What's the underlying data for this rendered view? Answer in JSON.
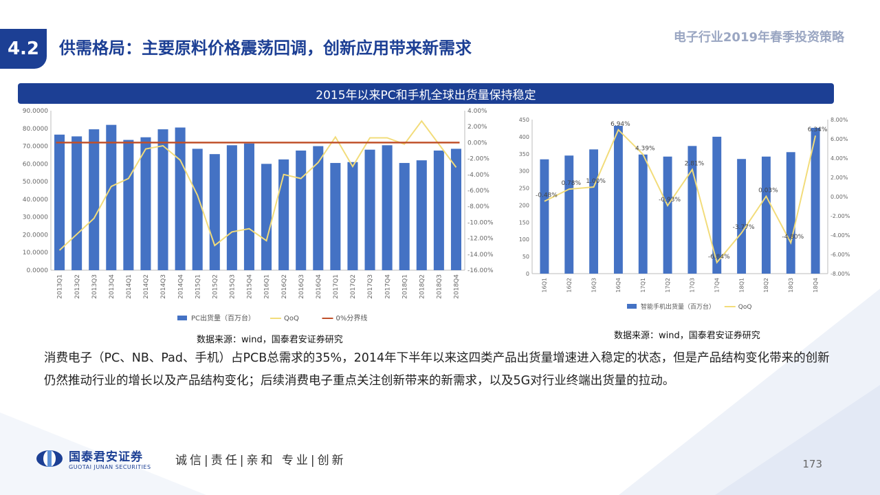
{
  "header": {
    "section_number": "4.2",
    "title": "供需格局：主要原料价格震荡回调，创新应用带来新需求",
    "brand": "电子行业2019年春季投资策略"
  },
  "banner": {
    "text": "2015年以来PC和手机全球出货量保持稳定"
  },
  "chart_data": [
    {
      "type": "bar",
      "categories": [
        "2013Q1",
        "2013Q2",
        "2013Q3",
        "2013Q4",
        "2014Q1",
        "2014Q2",
        "2014Q3",
        "2014Q4",
        "2015Q1",
        "2015Q2",
        "2015Q3",
        "2015Q4",
        "2016Q1",
        "2016Q2",
        "2016Q3",
        "2016Q4",
        "2017Q1",
        "2017Q2",
        "2017Q3",
        "2017Q4",
        "2018Q1",
        "2018Q2",
        "2018Q3",
        "2018Q4"
      ],
      "series": [
        {
          "name": "PC出货量（百万台）",
          "type": "bar",
          "axis": "left",
          "values": [
            76.5,
            75.5,
            79.5,
            82.0,
            73.5,
            75.0,
            79.5,
            80.5,
            68.5,
            65.5,
            70.5,
            71.5,
            60.0,
            62.5,
            67.5,
            70.0,
            60.5,
            61.0,
            68.0,
            70.5,
            60.5,
            62.0,
            67.5,
            68.5
          ]
        },
        {
          "name": "QoQ",
          "type": "line",
          "axis": "right",
          "values": [
            -13.5,
            -11.5,
            -9.5,
            -5.5,
            -4.5,
            -0.8,
            -0.4,
            -2.2,
            -6.6,
            -12.9,
            -11.2,
            -10.8,
            -12.3,
            -4.0,
            -4.5,
            -2.5,
            0.7,
            -3.0,
            0.6,
            0.6,
            -0.2,
            2.7,
            -0.2,
            -3.1
          ]
        },
        {
          "name": "0%分界线",
          "type": "line",
          "axis": "right",
          "values": [
            0,
            0,
            0,
            0,
            0,
            0,
            0,
            0,
            0,
            0,
            0,
            0,
            0,
            0,
            0,
            0,
            0,
            0,
            0,
            0,
            0,
            0,
            0,
            0
          ]
        }
      ],
      "left_ticks": [
        "0.0000",
        "10.0000",
        "20.0000",
        "30.0000",
        "40.0000",
        "50.0000",
        "60.0000",
        "70.0000",
        "80.0000",
        "90.0000"
      ],
      "right_ticks": [
        "4.00%",
        "2.00%",
        "0.00%",
        "-2.00%",
        "-4.00%",
        "-6.00%",
        "-8.00%",
        "-10.00%",
        "-12.00%",
        "-14.00%",
        "-16.00%"
      ],
      "ylim_left": [
        0,
        90
      ],
      "ylim_right": [
        -16,
        4
      ],
      "legend_position": "bottom",
      "colors": {
        "bar": "#4472c4",
        "qoq": "#f2dc7a",
        "zero": "#c0502a"
      }
    },
    {
      "type": "bar",
      "categories": [
        "16Q1",
        "16Q2",
        "16Q3",
        "16Q4",
        "17Q1",
        "17Q2",
        "17Q3",
        "17Q4",
        "18Q1",
        "18Q2",
        "18Q3",
        "18Q4"
      ],
      "series": [
        {
          "name": "智能手机出货量（百万台）",
          "type": "bar",
          "axis": "left",
          "values": [
            334,
            345,
            363,
            432,
            348,
            342,
            373,
            400,
            335,
            342,
            355,
            426
          ]
        },
        {
          "name": "QoQ",
          "type": "line",
          "axis": "right",
          "values": [
            -0.48,
            0.78,
            1.0,
            6.94,
            4.39,
            -0.93,
            2.81,
            -6.84,
            -3.77,
            0.03,
            -4.8,
            6.34
          ]
        }
      ],
      "data_labels": [
        "-0.48%",
        "0.78%",
        "1.00%",
        "6.94%",
        "4.39%",
        "-0.93%",
        "2.81%",
        "-6.84%",
        "-3.77%",
        "0.03%",
        "-4.80%",
        "6.34%"
      ],
      "left_ticks": [
        "0",
        "50",
        "100",
        "150",
        "200",
        "250",
        "300",
        "350",
        "400",
        "450"
      ],
      "right_ticks": [
        "8.00%",
        "6.00%",
        "4.00%",
        "2.00%",
        "0.00%",
        "-2.00%",
        "-4.00%",
        "-6.00%",
        "-8.00%"
      ],
      "ylim_left": [
        0,
        450
      ],
      "ylim_right": [
        -8,
        8
      ],
      "legend_position": "bottom",
      "colors": {
        "bar": "#4472c4",
        "qoq": "#f2dc7a"
      }
    }
  ],
  "sources": {
    "left": "数据来源：wind，国泰君安证券研究",
    "right": "数据来源：wind，国泰君安证券研究"
  },
  "body": {
    "paragraph": "消费电子（PC、NB、Pad、手机）占PCB总需求的35%，2014年下半年以来这四类产品出货量增速进入稳定的状态，但是产品结构变化带来的创新仍然推动行业的增长以及产品结构变化；后续消费电子重点关注创新带来的新需求，以及5G对行业终端出货量的拉动。"
  },
  "footer": {
    "company_cn": "国泰君安证券",
    "company_en": "GUOTAI JUNAN SECURITIES",
    "motto": "诚信|责任|亲和 专业|创新",
    "page_number": "173"
  }
}
